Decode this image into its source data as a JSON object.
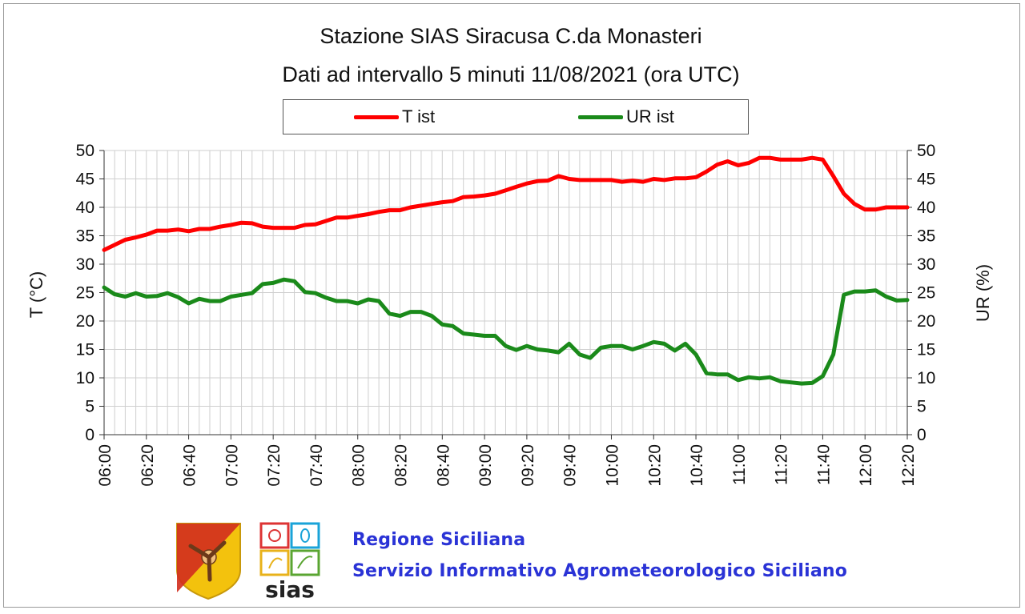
{
  "title_line1": "Stazione SIAS Siracusa C.da Monasteri",
  "title_line2": "Dati ad intervallo 5 minuti 11/08/2021 (ora UTC)",
  "org": {
    "line1": "Regione Siciliana",
    "line2": "Servizio Informativo Agrometeorologico Siciliano",
    "logo_text": "sias"
  },
  "chart_data": {
    "type": "line",
    "xlabel": "",
    "ylabel": "T (°C)",
    "y2label": "UR (%)",
    "ylim": [
      0,
      50
    ],
    "y2lim": [
      0,
      50
    ],
    "yticks": [
      0,
      5,
      10,
      15,
      20,
      25,
      30,
      35,
      40,
      45,
      50
    ],
    "grid": true,
    "legend": "top",
    "x_tick_labels": [
      "06:00",
      "06:20",
      "06:40",
      "07:00",
      "07:20",
      "07:40",
      "08:00",
      "08:20",
      "08:40",
      "09:00",
      "09:20",
      "09:40",
      "10:00",
      "10:20",
      "10:40",
      "11:00",
      "11:20",
      "11:40",
      "12:00",
      "12:20"
    ],
    "x_interval_minutes": 5,
    "x": [
      "06:00",
      "06:05",
      "06:10",
      "06:15",
      "06:20",
      "06:25",
      "06:30",
      "06:35",
      "06:40",
      "06:45",
      "06:50",
      "06:55",
      "07:00",
      "07:05",
      "07:10",
      "07:15",
      "07:20",
      "07:25",
      "07:30",
      "07:35",
      "07:40",
      "07:45",
      "07:50",
      "07:55",
      "08:00",
      "08:05",
      "08:10",
      "08:15",
      "08:20",
      "08:25",
      "08:30",
      "08:35",
      "08:40",
      "08:45",
      "08:50",
      "08:55",
      "09:00",
      "09:05",
      "09:10",
      "09:15",
      "09:20",
      "09:25",
      "09:30",
      "09:35",
      "09:40",
      "09:45",
      "09:50",
      "09:55",
      "10:00",
      "10:05",
      "10:10",
      "10:15",
      "10:20",
      "10:25",
      "10:30",
      "10:35",
      "10:40",
      "10:45",
      "10:50",
      "10:55",
      "11:00",
      "11:05",
      "11:10",
      "11:15",
      "11:20",
      "11:25",
      "11:30",
      "11:35",
      "11:40",
      "11:45",
      "11:50",
      "11:55",
      "12:00",
      "12:05",
      "12:10",
      "12:15",
      "12:20"
    ],
    "series": [
      {
        "name": "T ist",
        "axis": "left",
        "color": "#ff0000",
        "values": [
          32.5,
          33.4,
          34.3,
          34.7,
          35.2,
          35.9,
          35.9,
          36.1,
          35.8,
          36.2,
          36.2,
          36.6,
          36.9,
          37.3,
          37.2,
          36.6,
          36.4,
          36.4,
          36.4,
          36.9,
          37.0,
          37.6,
          38.2,
          38.2,
          38.5,
          38.8,
          39.2,
          39.5,
          39.5,
          40.0,
          40.3,
          40.6,
          40.9,
          41.1,
          41.8,
          41.9,
          42.1,
          42.4,
          43.0,
          43.6,
          44.2,
          44.6,
          44.7,
          45.5,
          45.0,
          44.8,
          44.8,
          44.8,
          44.8,
          44.5,
          44.7,
          44.5,
          45.0,
          44.8,
          45.1,
          45.1,
          45.3,
          46.3,
          47.5,
          48.1,
          47.4,
          47.8,
          48.7,
          48.7,
          48.4,
          48.4,
          48.4,
          48.7,
          48.4,
          45.5,
          42.4,
          40.6,
          39.6,
          39.6,
          40.0,
          40.0,
          40.0
        ]
      },
      {
        "name": "UR ist",
        "axis": "right",
        "color": "#1a8a1a",
        "values": [
          25.9,
          24.7,
          24.3,
          24.9,
          24.3,
          24.4,
          24.9,
          24.2,
          23.1,
          23.9,
          23.5,
          23.5,
          24.3,
          24.6,
          24.9,
          26.5,
          26.7,
          27.3,
          27.0,
          25.1,
          24.9,
          24.1,
          23.5,
          23.5,
          23.1,
          23.8,
          23.5,
          21.3,
          20.9,
          21.6,
          21.6,
          20.9,
          19.4,
          19.1,
          17.8,
          17.6,
          17.4,
          17.4,
          15.6,
          14.9,
          15.6,
          15.0,
          14.8,
          14.5,
          16.0,
          14.1,
          13.5,
          15.3,
          15.6,
          15.6,
          15.0,
          15.6,
          16.3,
          16.0,
          14.8,
          16.0,
          14.1,
          10.8,
          10.6,
          10.6,
          9.6,
          10.1,
          9.9,
          10.1,
          9.4,
          9.2,
          9.0,
          9.1,
          10.3,
          14.1,
          24.6,
          25.2,
          25.2,
          25.4,
          24.3,
          23.6,
          23.7
        ]
      }
    ]
  }
}
